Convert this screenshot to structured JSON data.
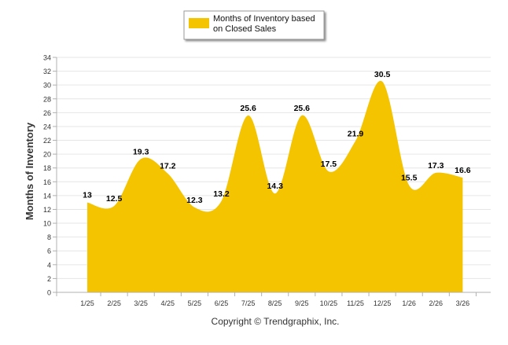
{
  "chart_data": {
    "type": "area",
    "title": "",
    "xlabel": "",
    "ylabel": "Months of Inventory",
    "ylim": [
      0,
      34
    ],
    "ytick_step": 2,
    "grid": true,
    "legend_position": "top-center",
    "categories": [
      "1/25",
      "2/25",
      "3/25",
      "4/25",
      "5/25",
      "6/25",
      "7/25",
      "8/25",
      "9/25",
      "10/25",
      "11/25",
      "12/25",
      "1/26",
      "2/26",
      "3/26"
    ],
    "series": [
      {
        "name": "Months of Inventory based on Closed Sales",
        "legend_lines": [
          "Months of Inventory based",
          "on Closed Sales"
        ],
        "color": "#F5C400",
        "values": [
          13,
          12.5,
          19.3,
          17.2,
          12.3,
          13.2,
          25.6,
          14.3,
          25.6,
          17.5,
          21.9,
          30.5,
          15.5,
          17.3,
          16.6
        ],
        "labels": [
          "13",
          "12.5",
          "19.3",
          "17.2",
          "12.3",
          "13.2",
          "25.6",
          "14.3",
          "25.6",
          "17.5",
          "21.9",
          "30.5",
          "15.5",
          "17.3",
          "16.6"
        ]
      }
    ],
    "footer": "Copyright © Trendgraphix, Inc."
  },
  "colors": {
    "fill": "#F5C400",
    "grid": "#E6E6E6",
    "axis": "#B0B0B0",
    "text": "#333333"
  }
}
